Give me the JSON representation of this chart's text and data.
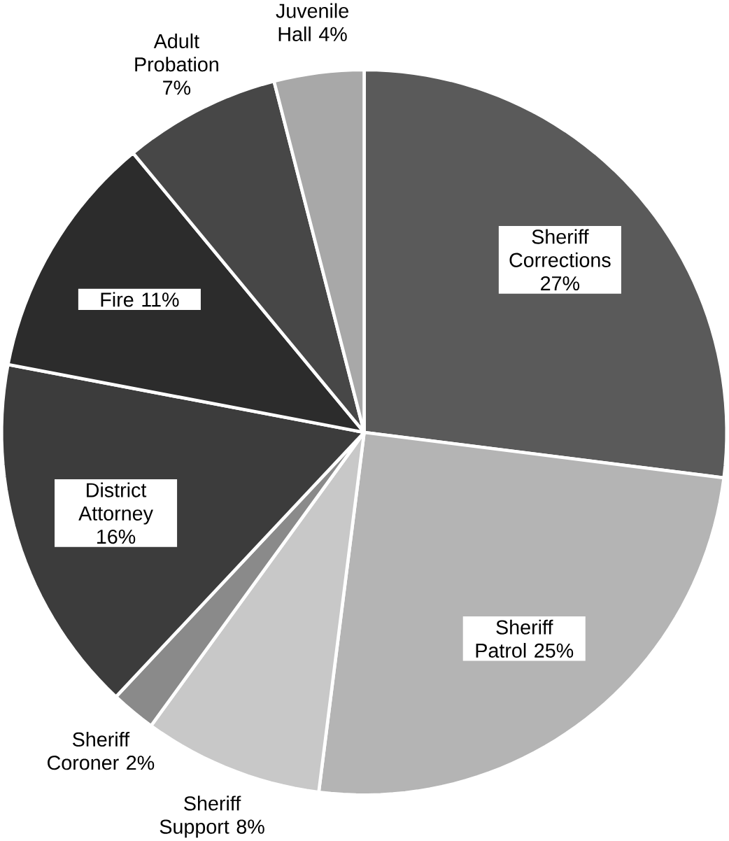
{
  "chart_data": {
    "type": "pie",
    "categories": [
      "Sheriff Corrections",
      "Sheriff Patrol",
      "Sheriff Support",
      "Sheriff Coroner",
      "District Attorney",
      "Fire",
      "Adult Probation",
      "Juvenile Hall"
    ],
    "values": [
      27,
      25,
      8,
      2,
      16,
      11,
      7,
      4
    ],
    "value_labels": [
      "27%",
      "25%",
      "8%",
      "2%",
      "16%",
      "11%",
      "7%",
      "4%"
    ],
    "colors": [
      "#5a5a5a",
      "#b4b4b4",
      "#c8c8c8",
      "#8a8a8a",
      "#3c3c3c",
      "#2c2c2c",
      "#474747",
      "#a8a8a8"
    ]
  }
}
